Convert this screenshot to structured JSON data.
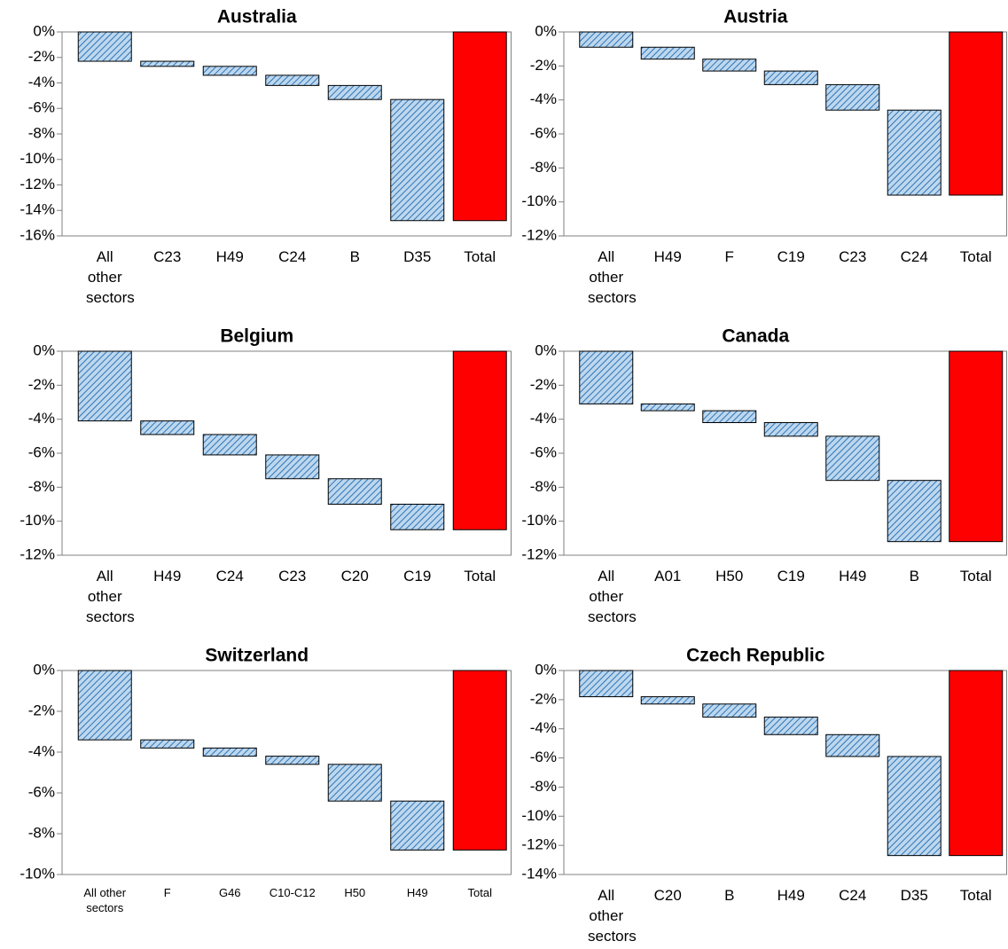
{
  "chart_data": [
    {
      "type": "waterfall",
      "title": "Australia",
      "categories": [
        "All other sectors",
        "C23",
        "H49",
        "C24",
        "B",
        "D35",
        "Total"
      ],
      "values": [
        -2.3,
        -0.4,
        -0.7,
        -0.8,
        -1.1,
        -9.5,
        -14.8
      ],
      "color": "#bdd7ee",
      "hatch_color": "#2e75b6",
      "total_color": "#ff0000",
      "ylim": [
        -16,
        0
      ],
      "yticks": [
        {
          "value": 0,
          "label": "0%"
        },
        {
          "value": -2,
          "label": "-2%"
        },
        {
          "value": -4,
          "label": "-4%"
        },
        {
          "value": -6,
          "label": "-6%"
        },
        {
          "value": -8,
          "label": "-8%"
        },
        {
          "value": -10,
          "label": "-10%"
        },
        {
          "value": -12,
          "label": "-12%"
        },
        {
          "value": -14,
          "label": "-14%"
        },
        {
          "value": -16,
          "label": "-16%"
        }
      ]
    },
    {
      "type": "waterfall",
      "title": "Austria",
      "categories": [
        "All other sectors",
        "H49",
        "F",
        "C19",
        "C23",
        "C24",
        "Total"
      ],
      "values": [
        -0.9,
        -0.7,
        -0.7,
        -0.8,
        -1.5,
        -5.0,
        -9.6
      ],
      "color": "#bdd7ee",
      "hatch_color": "#2e75b6",
      "total_color": "#ff0000",
      "ylim": [
        -12,
        0
      ],
      "yticks": [
        {
          "value": 0,
          "label": "0%"
        },
        {
          "value": -2,
          "label": "-2%"
        },
        {
          "value": -4,
          "label": "-4%"
        },
        {
          "value": -6,
          "label": "-6%"
        },
        {
          "value": -8,
          "label": "-8%"
        },
        {
          "value": -10,
          "label": "-10%"
        },
        {
          "value": -12,
          "label": "-12%"
        }
      ]
    },
    {
      "type": "waterfall",
      "title": "Belgium",
      "categories": [
        "All other sectors",
        "H49",
        "C24",
        "C23",
        "C20",
        "C19",
        "Total"
      ],
      "values": [
        -4.1,
        -0.8,
        -1.2,
        -1.4,
        -1.5,
        -1.5,
        -10.5
      ],
      "color": "#bdd7ee",
      "hatch_color": "#2e75b6",
      "total_color": "#ff0000",
      "ylim": [
        -12,
        0
      ],
      "yticks": [
        {
          "value": 0,
          "label": "0%"
        },
        {
          "value": -2,
          "label": "-2%"
        },
        {
          "value": -4,
          "label": "-4%"
        },
        {
          "value": -6,
          "label": "-6%"
        },
        {
          "value": -8,
          "label": "-8%"
        },
        {
          "value": -10,
          "label": "-10%"
        },
        {
          "value": -12,
          "label": "-12%"
        }
      ]
    },
    {
      "type": "waterfall",
      "title": "Canada",
      "categories": [
        "All other sectors",
        "A01",
        "H50",
        "C19",
        "H49",
        "B",
        "Total"
      ],
      "values": [
        -3.1,
        -0.4,
        -0.7,
        -0.8,
        -2.6,
        -3.6,
        -11.2
      ],
      "color": "#bdd7ee",
      "hatch_color": "#2e75b6",
      "total_color": "#ff0000",
      "ylim": [
        -12,
        0
      ],
      "yticks": [
        {
          "value": 0,
          "label": "0%"
        },
        {
          "value": -2,
          "label": "-2%"
        },
        {
          "value": -4,
          "label": "-4%"
        },
        {
          "value": -6,
          "label": "-6%"
        },
        {
          "value": -8,
          "label": "-8%"
        },
        {
          "value": -10,
          "label": "-10%"
        },
        {
          "value": -12,
          "label": "-12%"
        }
      ]
    },
    {
      "type": "waterfall",
      "title": "Switzerland",
      "categories": [
        "All other sectors",
        "F",
        "G46",
        "C10-C12",
        "H50",
        "H49",
        "Total"
      ],
      "values": [
        -3.4,
        -0.4,
        -0.4,
        -0.4,
        -1.8,
        -2.4,
        -8.8
      ],
      "color": "#bdd7ee",
      "hatch_color": "#2e75b6",
      "total_color": "#ff0000",
      "ylim": [
        -10,
        0
      ],
      "yticks": [
        {
          "value": 0,
          "label": "0%"
        },
        {
          "value": -2,
          "label": "-2%"
        },
        {
          "value": -4,
          "label": "-4%"
        },
        {
          "value": -6,
          "label": "-6%"
        },
        {
          "value": -8,
          "label": "-8%"
        },
        {
          "value": -10,
          "label": "-10%"
        }
      ]
    },
    {
      "type": "waterfall",
      "title": "Czech Republic",
      "categories": [
        "All other sectors",
        "C20",
        "B",
        "H49",
        "C24",
        "D35",
        "Total"
      ],
      "values": [
        -1.8,
        -0.5,
        -0.9,
        -1.2,
        -1.5,
        -6.8,
        -12.7
      ],
      "color": "#bdd7ee",
      "hatch_color": "#2e75b6",
      "total_color": "#ff0000",
      "ylim": [
        -14,
        0
      ],
      "yticks": [
        {
          "value": 0,
          "label": "0%"
        },
        {
          "value": -2,
          "label": "-2%"
        },
        {
          "value": -4,
          "label": "-4%"
        },
        {
          "value": -6,
          "label": "-6%"
        },
        {
          "value": -8,
          "label": "-8%"
        },
        {
          "value": -10,
          "label": "-10%"
        },
        {
          "value": -12,
          "label": "-12%"
        },
        {
          "value": -14,
          "label": "-14%"
        }
      ]
    }
  ]
}
